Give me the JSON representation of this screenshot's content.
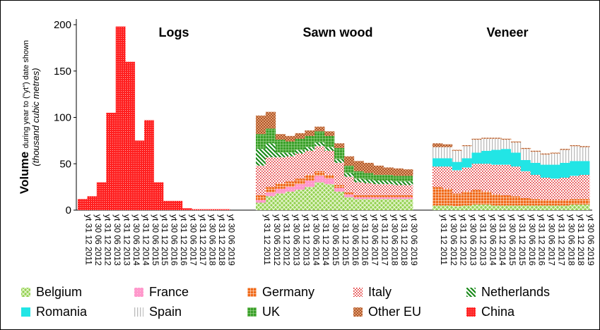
{
  "chart_data": {
    "type": "bar",
    "stacked": true,
    "ylim": [
      0,
      200
    ],
    "yticks": [
      0,
      50,
      100,
      150,
      200
    ],
    "ylabel": {
      "main": "Volume",
      "sub": "during year to (\"yt\") date shown",
      "unit": "(thousand cubic metres)"
    },
    "panels": [
      {
        "title": "Logs",
        "x_labels": [
          "yt 31 12 2011",
          "yt 30 06 2012",
          "yt 31 12 2012",
          "yt 30 06 2013",
          "yt 31 12 2013",
          "yt 30 06 2014",
          "yt 31 12 2014",
          "yt 30 06 2015",
          "yt 31 12 2015",
          "yt 30 06 2016",
          "yt 31 12 2016",
          "yt 30 06 2017",
          "yt 31 12 2017",
          "yt 30 06 2018",
          "yt 31 12 2018",
          "yt 30 06 2019"
        ],
        "series": [
          {
            "name": "China",
            "values": [
              12,
              15,
              30,
              105,
              198,
              160,
              75,
              97,
              30,
              10,
              10,
              2,
              1,
              1,
              1,
              1
            ]
          }
        ]
      },
      {
        "title": "Sawn wood",
        "x_labels": [
          "yt 31 12 2011",
          "yt 30 06 2012",
          "yt 31 12 2012",
          "yt 30 06 2013",
          "yt 31 12 2013",
          "yt 30 06 2014",
          "yt 31 12 2014",
          "yt 30 06 2015",
          "yt 31 12 2015",
          "yt 30 06 2016",
          "yt 31 12 2016",
          "yt 30 06 2017",
          "yt 31 12 2017",
          "yt 30 06 2018",
          "yt 31 12 2018",
          "yt 30 06 2019"
        ],
        "series": [
          {
            "name": "Belgium",
            "values": [
              8,
              15,
              18,
              20,
              22,
              25,
              30,
              28,
              20,
              14,
              12,
              12,
              12,
              12,
              12,
              12
            ]
          },
          {
            "name": "France",
            "values": [
              3,
              4,
              5,
              5,
              6,
              7,
              7,
              6,
              4,
              3,
              2,
              2,
              2,
              2,
              2,
              2
            ]
          },
          {
            "name": "Germany",
            "values": [
              5,
              6,
              6,
              6,
              6,
              6,
              5,
              4,
              3,
              2,
              2,
              2,
              2,
              2,
              2,
              2
            ]
          },
          {
            "name": "Italy",
            "values": [
              32,
              32,
              28,
              27,
              27,
              26,
              27,
              26,
              24,
              17,
              14,
              13,
              12,
              12,
              11,
              11
            ]
          },
          {
            "name": "Netherlands",
            "values": [
              18,
              15,
              5,
              4,
              4,
              4,
              4,
              4,
              4,
              4,
              4,
              4,
              4,
              4,
              4,
              4
            ]
          },
          {
            "name": "Romania",
            "values": [
              0,
              0,
              0,
              0,
              0,
              0,
              0,
              0,
              0,
              0,
              0,
              0,
              0,
              0,
              0,
              0
            ]
          },
          {
            "name": "Spain",
            "values": [
              0,
              0,
              0,
              0,
              0,
              0,
              0,
              0,
              0,
              0,
              0,
              0,
              0,
              0,
              0,
              0
            ]
          },
          {
            "name": "UK",
            "values": [
              16,
              16,
              14,
              12,
              12,
              12,
              12,
              12,
              12,
              8,
              8,
              7,
              6,
              6,
              6,
              6
            ]
          },
          {
            "name": "Other EU",
            "values": [
              20,
              18,
              6,
              6,
              6,
              6,
              5,
              5,
              5,
              10,
              11,
              11,
              10,
              8,
              8,
              7
            ]
          }
        ]
      },
      {
        "title": "Veneer",
        "x_labels": [
          "yt 31 12 2011",
          "yt 30 06 2012",
          "yt 31 12 2012",
          "yt 30 06 2013",
          "yt 31 12 2013",
          "yt 30 06 2014",
          "yt 31 12 2014",
          "yt 30 06 2015",
          "yt 31 12 2015",
          "yt 30 06 2016",
          "yt 31 12 2016",
          "yt 30 06 2017",
          "yt 31 12 2017",
          "yt 30 06 2018",
          "yt 31 12 2018",
          "yt 30 06 2019"
        ],
        "series": [
          {
            "name": "Belgium",
            "values": [
              5,
              5,
              4,
              5,
              6,
              6,
              5,
              5,
              5,
              5,
              5,
              5,
              5,
              5,
              6,
              6
            ]
          },
          {
            "name": "Germany",
            "values": [
              20,
              18,
              14,
              15,
              16,
              14,
              12,
              11,
              10,
              8,
              7,
              6,
              6,
              6,
              6,
              6
            ]
          },
          {
            "name": "Italy",
            "values": [
              22,
              24,
              25,
              26,
              28,
              30,
              32,
              33,
              32,
              29,
              26,
              24,
              23,
              24,
              25,
              26
            ]
          },
          {
            "name": "Romania",
            "values": [
              9,
              9,
              9,
              10,
              12,
              14,
              16,
              17,
              15,
              12,
              13,
              14,
              15,
              16,
              16,
              15
            ]
          },
          {
            "name": "Spain",
            "values": [
              12,
              12,
              12,
              13,
              14,
              13,
              12,
              10,
              11,
              12,
              12,
              11,
              12,
              14,
              16,
              15
            ]
          },
          {
            "name": "Other EU",
            "values": [
              4,
              3,
              1,
              1,
              1,
              1,
              1,
              1,
              1,
              1,
              1,
              1,
              1,
              1,
              1,
              1
            ]
          }
        ]
      }
    ],
    "legend": {
      "position": "bottom",
      "entries": [
        {
          "name": "Belgium",
          "color": "#92d050",
          "pattern": "crosshatch"
        },
        {
          "name": "France",
          "color": "#ff99cc",
          "pattern": "solid"
        },
        {
          "name": "Germany",
          "color": "#f06a1a",
          "pattern": "grid"
        },
        {
          "name": "Italy",
          "color": "#e02020",
          "pattern": "dots"
        },
        {
          "name": "Netherlands",
          "color": "#1a8a1a",
          "pattern": "diagonal"
        },
        {
          "name": "Romania",
          "color": "#22e5e5",
          "pattern": "solid"
        },
        {
          "name": "Spain",
          "color": "#bbbbbb",
          "pattern": "vertical"
        },
        {
          "name": "UK",
          "color": "#3aa02a",
          "pattern": "grid"
        },
        {
          "name": "Other EU",
          "color": "#a0441a",
          "pattern": "diagcross"
        },
        {
          "name": "China",
          "color": "#ff2020",
          "pattern": "dots"
        }
      ]
    }
  }
}
